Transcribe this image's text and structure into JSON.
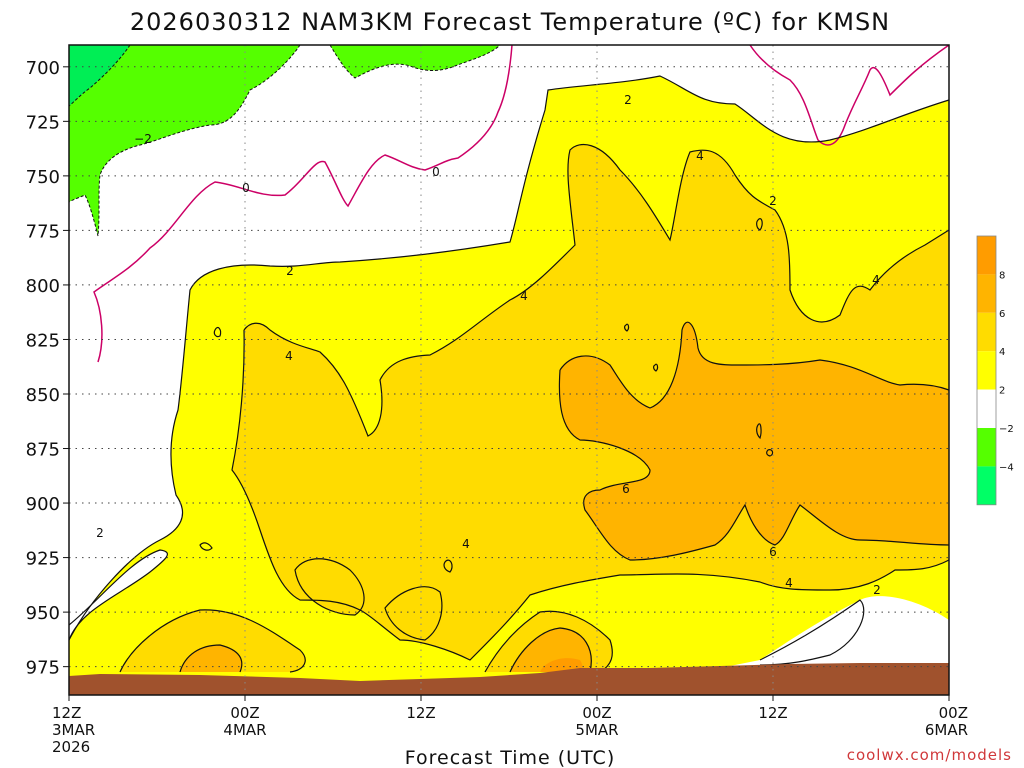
{
  "chart_data": {
    "type": "heatmap",
    "title": "2026030312 NAM3KM Forecast Temperature (ºC) for KMSN",
    "xlabel": "Forecast Time (UTC)",
    "ylabel": "",
    "credit": "coolwx.com/models",
    "y_ticks": [
      "700",
      "725",
      "750",
      "775",
      "800",
      "825",
      "850",
      "875",
      "900",
      "925",
      "950",
      "975"
    ],
    "x_ticks": [
      {
        "lines": [
          "12Z",
          "3MAR",
          "2026"
        ]
      },
      {
        "lines": [
          "00Z",
          "4MAR"
        ]
      },
      {
        "lines": [
          "12Z"
        ]
      },
      {
        "lines": [
          "00Z",
          "5MAR"
        ]
      },
      {
        "lines": [
          "12Z"
        ]
      },
      {
        "lines": [
          "00Z",
          "6MAR"
        ]
      }
    ],
    "ylim": [
      988,
      690
    ],
    "grid": true,
    "contour_labels": [
      "2",
      "−2",
      "0",
      "2",
      "4",
      "4",
      "6",
      "6",
      "4",
      "4",
      "2",
      "2",
      "4",
      "0",
      "2",
      "4"
    ],
    "legend": {
      "position": "right",
      "ticks": [
        "8",
        "6",
        "4",
        "2",
        "−2",
        "−4"
      ],
      "colors": [
        "#ff9c00",
        "#ffb400",
        "#ffdc00",
        "#ffff00",
        "#ffffff",
        "#55ff00",
        "#00ff66"
      ]
    },
    "colors": {
      "green": "#55ff00",
      "bright_green": "#00ee55",
      "white": "#ffffff",
      "yellow": "#ffff00",
      "light_orange": "#ffdc00",
      "orange": "#ffb400",
      "dark_orange": "#ff9c00",
      "zero_line": "#cc0066",
      "ground": "#a0522d"
    }
  }
}
